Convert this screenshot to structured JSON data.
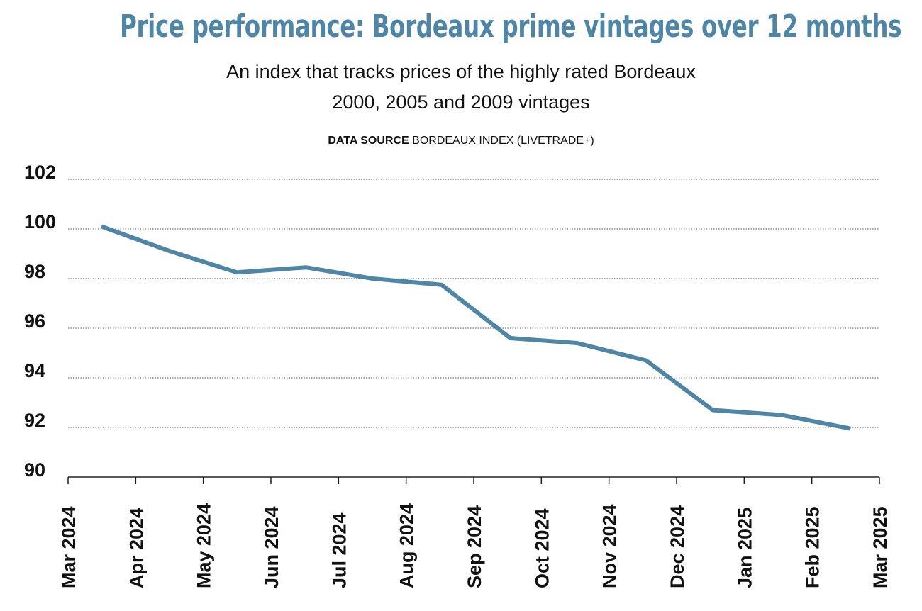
{
  "colors": {
    "title": "#4f86a6",
    "line": "#4f86a6",
    "grid": "#555555",
    "axis": "#222222"
  },
  "header": {
    "title": "Price performance: Bordeaux prime vintages over 12 months",
    "subtitle_line1": "An index that tracks prices of the highly rated Bordeaux",
    "subtitle_line2": "2000, 2005 and 2009 vintages",
    "source_label": "DATA SOURCE",
    "source_text": "BORDEAUX INDEX (LIVETRADE+)"
  },
  "chart_data": {
    "type": "line",
    "title": "Price performance: Bordeaux prime vintages over 12 months",
    "subtitle": "An index that tracks prices of the highly rated Bordeaux 2000, 2005 and 2009 vintages",
    "xlabel": "",
    "ylabel": "",
    "ylim": [
      90,
      102
    ],
    "yticks": [
      90,
      92,
      94,
      96,
      98,
      100,
      102
    ],
    "xlim": [
      "2024-03-01",
      "2025-03-01"
    ],
    "xticks": [
      "Mar 2024",
      "Apr 2024",
      "May 2024",
      "Jun 2024",
      "Jul 2024",
      "Aug 2024",
      "Sep 2024",
      "Oct 2024",
      "Nov 2024",
      "Dec 2024",
      "Jan 2025",
      "Feb 2025",
      "Mar 2025"
    ],
    "grid": "horizontal dotted",
    "x": [
      "2024-03-16",
      "2024-04-16",
      "2024-05-16",
      "2024-06-16",
      "2024-07-16",
      "2024-08-16",
      "2024-09-16",
      "2024-10-16",
      "2024-11-16",
      "2024-12-16",
      "2025-01-16",
      "2025-02-16"
    ],
    "values": [
      100.1,
      99.1,
      98.25,
      98.45,
      98.0,
      97.75,
      95.6,
      95.4,
      94.7,
      92.7,
      92.5,
      91.95
    ]
  }
}
